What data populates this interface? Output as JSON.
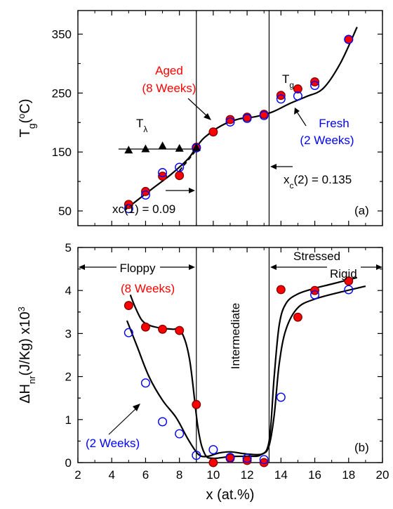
{
  "colors": {
    "aged": "#ff0000",
    "aged_edge": "#7f0000",
    "fresh": "#0000ff",
    "black": "#000000"
  },
  "chart_data": [
    {
      "type": "scatter",
      "panel_label": "(a)",
      "ylabel": "T_g(°C)",
      "ylim": [
        25,
        390
      ],
      "xlim": [
        2,
        20
      ],
      "xticks": [
        2,
        4,
        6,
        8,
        10,
        12,
        14,
        16,
        18,
        20
      ],
      "yticks": [
        50,
        150,
        250,
        350
      ],
      "grid": false,
      "series": [
        {
          "name": "Aged (8 Weeks)",
          "marker": "filled-circle",
          "x": [
            5,
            6,
            7,
            8,
            9,
            10,
            11,
            12,
            13,
            14,
            15,
            16,
            18
          ],
          "y": [
            61,
            83,
            109,
            110,
            158,
            184,
            205,
            209,
            214,
            246,
            257,
            269,
            341
          ]
        },
        {
          "name": "Fresh (2 Weeks)",
          "marker": "open-circle",
          "x": [
            5,
            6,
            7,
            8,
            9,
            11,
            12,
            13,
            14,
            15,
            16,
            18
          ],
          "y": [
            54,
            77,
            115,
            124,
            157,
            201,
            207,
            212,
            240,
            245,
            263,
            341
          ]
        },
        {
          "name": "T_λ",
          "marker": "filled-triangle",
          "x": [
            5,
            6,
            7,
            8,
            9
          ],
          "y": [
            153,
            155,
            160,
            156,
            157
          ]
        }
      ],
      "fit_curve": {
        "x": [
          4.8,
          5.5,
          6.5,
          7.5,
          8.5,
          9,
          9.5,
          10.5,
          11.5,
          12.5,
          13.5,
          14.5,
          15.5,
          16.5,
          17.5,
          18.5
        ],
        "y": [
          52,
          68,
          90,
          112,
          138,
          158,
          175,
          195,
          206,
          210,
          218,
          232,
          244,
          258,
          300,
          362
        ]
      },
      "tlambda_line": {
        "x": [
          4.4,
          9
        ],
        "y": [
          155,
          155
        ]
      },
      "dashed_segment": {
        "x": [
          8.0,
          8.9
        ],
        "y": [
          118,
          150
        ]
      },
      "vlines": [
        9,
        13.3
      ],
      "annotations": {
        "aged_line1": "Aged",
        "aged_line2": "(8 Weeks)",
        "fresh_line1": "Fresh",
        "fresh_line2": "(2 Weeks)",
        "tg": "T_g",
        "tlambda": "T_λ",
        "xc1": "xc(1) = 0.09",
        "xc2": "x_c(2) = 0.135"
      }
    },
    {
      "type": "scatter",
      "panel_label": "(b)",
      "xlabel": "x (at.%)",
      "ylabel": "ΔH_nr(J/Kg) x10^3",
      "ylim": [
        0,
        5
      ],
      "xlim": [
        2,
        20
      ],
      "xticks": [
        2,
        4,
        6,
        8,
        10,
        12,
        14,
        16,
        18,
        20
      ],
      "yticks": [
        0,
        1,
        2,
        3,
        4,
        5
      ],
      "grid": false,
      "series": [
        {
          "name": "(8 Weeks)",
          "marker": "filled-circle",
          "x": [
            5,
            6,
            7,
            8,
            9,
            10,
            11,
            12,
            13,
            14,
            15,
            16,
            18
          ],
          "y": [
            3.65,
            3.15,
            3.1,
            3.07,
            1.35,
            0.0,
            0.1,
            0.05,
            0.0,
            4.02,
            3.38,
            4.0,
            4.22
          ]
        },
        {
          "name": "(2 Weeks)",
          "marker": "open-circle",
          "x": [
            5,
            6,
            7,
            8,
            9,
            10,
            11,
            12,
            13,
            14,
            16,
            18
          ],
          "y": [
            3.02,
            1.85,
            0.95,
            0.67,
            0.17,
            0.3,
            0.12,
            0.1,
            0.07,
            1.52,
            3.9,
            4.02
          ]
        }
      ],
      "curve_aged": {
        "x": [
          5.1,
          5.4,
          5.8,
          6.3,
          7,
          7.6,
          8.1,
          8.6,
          9.1,
          9.5,
          10,
          11,
          12,
          12.8,
          13.3,
          13.6,
          13.9,
          14.3,
          15,
          16,
          17,
          18.5
        ],
        "y": [
          3.9,
          3.6,
          3.3,
          3.18,
          3.12,
          3.1,
          3.05,
          2.4,
          0.8,
          0.2,
          0.1,
          0.14,
          0.15,
          0.18,
          0.5,
          2.0,
          3.2,
          3.7,
          3.92,
          4.05,
          4.15,
          4.3
        ]
      },
      "curve_fresh": {
        "x": [
          4.9,
          5.5,
          6.2,
          7,
          7.8,
          8.5,
          9.1,
          9.6,
          10.3,
          11,
          12,
          12.9,
          13.3,
          13.6,
          13.9,
          14.3,
          15,
          16,
          17.5,
          19
        ],
        "y": [
          3.3,
          2.7,
          2.0,
          1.45,
          1.05,
          0.55,
          0.2,
          0.14,
          0.22,
          0.25,
          0.2,
          0.2,
          0.4,
          1.1,
          2.3,
          3.1,
          3.6,
          3.8,
          3.96,
          4.1
        ]
      },
      "vlines": [
        9,
        13.3
      ],
      "annotations": {
        "floppy": "Floppy",
        "intermediate": "Intermediate",
        "stressed": "Stressed",
        "rigid": "Rigid",
        "aged": "(8 Weeks)",
        "fresh": "(2 Weeks)"
      }
    }
  ]
}
